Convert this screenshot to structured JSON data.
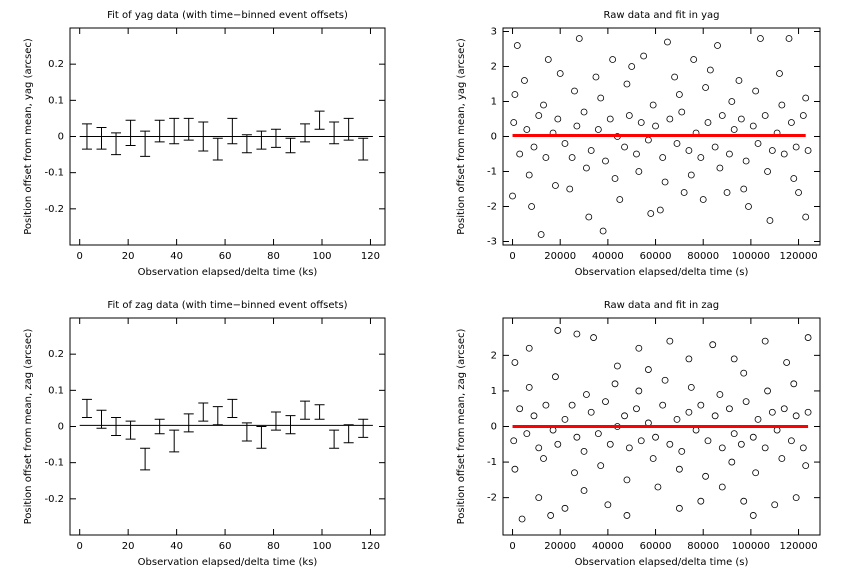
{
  "chart_data": [
    {
      "type": "errorbar",
      "title": "Fit of yag data (with time−binned event offsets)",
      "xlabel": "Observation elapsed/delta time (ks)",
      "ylabel": "Position offset from mean, yag (arcsec)",
      "x": [
        3,
        9,
        15,
        21,
        27,
        33,
        39,
        45,
        51,
        57,
        63,
        69,
        75,
        81,
        87,
        93,
        99,
        105,
        111,
        117
      ],
      "values": [
        0.0,
        -0.005,
        -0.02,
        0.01,
        -0.02,
        0.015,
        0.015,
        0.02,
        0.0,
        -0.035,
        0.015,
        -0.02,
        -0.01,
        -0.005,
        -0.025,
        0.01,
        0.045,
        0.01,
        0.02,
        -0.035
      ],
      "errors": [
        0.035,
        0.03,
        0.03,
        0.035,
        0.035,
        0.03,
        0.035,
        0.03,
        0.04,
        0.03,
        0.035,
        0.025,
        0.025,
        0.025,
        0.02,
        0.025,
        0.025,
        0.03,
        0.03,
        0.03
      ],
      "color": "#000000",
      "fit": {
        "x": [
          0,
          121
        ],
        "values": [
          0.0,
          0.0
        ],
        "color": "#000000"
      },
      "xlim": [
        -4,
        126
      ],
      "ylim": [
        -0.3,
        0.3
      ],
      "xticks": [
        0,
        20,
        40,
        60,
        80,
        100,
        120
      ],
      "yticks": [
        -0.2,
        -0.1,
        0,
        0.1,
        0.2
      ]
    },
    {
      "type": "scatter",
      "title": "Raw data and fit in yag",
      "xlabel": "Observation elapsed/delta time (s)",
      "ylabel": "Position offset from mean, yag (arcsec)",
      "x": [
        500,
        3000,
        6000,
        9000,
        11000,
        14000,
        17000,
        19000,
        22000,
        25000,
        27000,
        30000,
        33000,
        36000,
        39000,
        41000,
        44000,
        47000,
        49000,
        52000,
        54000,
        57000,
        60000,
        63000,
        66000,
        69000,
        71000,
        74000,
        77000,
        79000,
        82000,
        85000,
        88000,
        91000,
        93000,
        96000,
        98000,
        101000,
        103000,
        106000,
        109000,
        111000,
        114000,
        117000,
        119000,
        122000,
        124000,
        1000,
        7000,
        13000,
        18000,
        26000,
        31000,
        37000,
        43000,
        48000,
        53000,
        59000,
        64000,
        70000,
        75000,
        81000,
        87000,
        92000,
        97000,
        102000,
        107000,
        113000,
        118000,
        123000,
        0,
        2000,
        5000,
        8000,
        12000,
        15000,
        20000,
        24000,
        28000,
        32000,
        35000,
        38000,
        42000,
        45000,
        50000,
        55000,
        58000,
        62000,
        65000,
        68000,
        72000,
        76000,
        80000,
        83000,
        86000,
        90000,
        95000,
        99000,
        104000,
        108000,
        112000,
        116000,
        120000,
        123000
      ],
      "values": [
        0.4,
        -0.5,
        0.2,
        -0.3,
        0.6,
        -0.6,
        0.1,
        0.5,
        -0.2,
        -0.6,
        0.3,
        0.7,
        -0.4,
        0.2,
        -0.7,
        0.5,
        0.0,
        -0.3,
        0.6,
        -0.5,
        0.4,
        -0.1,
        0.3,
        -0.6,
        0.5,
        -0.2,
        0.7,
        -0.4,
        0.1,
        -0.6,
        0.4,
        -0.3,
        0.6,
        -0.5,
        0.2,
        0.5,
        -0.7,
        0.3,
        -0.2,
        0.6,
        -0.4,
        0.1,
        -0.5,
        0.4,
        -0.3,
        0.6,
        -0.4,
        1.2,
        -1.1,
        0.9,
        -1.4,
        1.3,
        -0.9,
        1.1,
        -1.2,
        1.5,
        -1.0,
        0.9,
        -1.3,
        1.2,
        -1.1,
        1.4,
        -0.9,
        1.0,
        -1.5,
        1.3,
        -1.0,
        0.9,
        -1.2,
        1.1,
        -1.7,
        2.6,
        1.6,
        -2.0,
        -2.8,
        2.2,
        1.8,
        -1.5,
        2.8,
        -2.3,
        1.7,
        -2.7,
        2.2,
        -1.8,
        2.0,
        2.3,
        -2.2,
        -2.1,
        2.7,
        1.7,
        -1.6,
        2.2,
        -1.8,
        1.9,
        2.6,
        -1.6,
        1.6,
        -2.0,
        2.8,
        -2.4,
        1.8,
        2.8,
        -1.6,
        -2.3
      ],
      "color": "#000000",
      "fit": {
        "x": [
          0,
          123000
        ],
        "values": [
          0.03,
          0.03
        ],
        "color": "#ff0000"
      },
      "xlim": [
        -4000,
        129000
      ],
      "ylim": [
        -3.1,
        3.1
      ],
      "xticks": [
        0,
        20000,
        40000,
        60000,
        80000,
        100000,
        120000
      ],
      "yticks": [
        -3,
        -2,
        -1,
        0,
        1,
        2,
        3
      ]
    },
    {
      "type": "errorbar",
      "title": "Fit of zag data (with time−binned event offsets)",
      "xlabel": "Observation elapsed/delta time (ks)",
      "ylabel": "Position offset from mean, zag (arcsec)",
      "x": [
        3,
        9,
        15,
        21,
        27,
        33,
        39,
        45,
        51,
        57,
        63,
        69,
        75,
        81,
        87,
        93,
        99,
        105,
        111,
        117
      ],
      "values": [
        0.05,
        0.02,
        0.0,
        -0.01,
        -0.09,
        0.0,
        -0.04,
        0.01,
        0.04,
        0.03,
        0.05,
        -0.015,
        -0.03,
        0.015,
        0.005,
        0.045,
        0.04,
        -0.035,
        -0.02,
        -0.005
      ],
      "errors": [
        0.025,
        0.025,
        0.025,
        0.025,
        0.03,
        0.02,
        0.03,
        0.025,
        0.025,
        0.025,
        0.025,
        0.025,
        0.03,
        0.025,
        0.025,
        0.025,
        0.02,
        0.025,
        0.025,
        0.025
      ],
      "color": "#000000",
      "fit": {
        "x": [
          0,
          121
        ],
        "values": [
          0.003,
          0.003
        ],
        "color": "#000000"
      },
      "xlim": [
        -4,
        126
      ],
      "ylim": [
        -0.3,
        0.3
      ],
      "xticks": [
        0,
        20,
        40,
        60,
        80,
        100,
        120
      ],
      "yticks": [
        -0.2,
        -0.1,
        0,
        0.1,
        0.2
      ]
    },
    {
      "type": "scatter",
      "title": "Raw data and fit in zag",
      "xlabel": "Observation elapsed/delta time (s)",
      "ylabel": "Position offset from mean, zag (arcsec)",
      "x": [
        500,
        3000,
        6000,
        9000,
        11000,
        14000,
        17000,
        19000,
        22000,
        25000,
        27000,
        30000,
        33000,
        36000,
        39000,
        41000,
        44000,
        47000,
        49000,
        52000,
        54000,
        57000,
        60000,
        63000,
        66000,
        69000,
        71000,
        74000,
        77000,
        79000,
        82000,
        85000,
        88000,
        91000,
        93000,
        96000,
        98000,
        101000,
        103000,
        106000,
        109000,
        111000,
        114000,
        117000,
        119000,
        122000,
        124000,
        1000,
        7000,
        13000,
        18000,
        26000,
        31000,
        37000,
        43000,
        48000,
        53000,
        59000,
        64000,
        70000,
        75000,
        81000,
        87000,
        92000,
        97000,
        102000,
        107000,
        113000,
        118000,
        123000,
        1000,
        4000,
        7000,
        11000,
        16000,
        19000,
        22000,
        27000,
        30000,
        34000,
        40000,
        44000,
        48000,
        53000,
        57000,
        61000,
        66000,
        70000,
        74000,
        79000,
        84000,
        88000,
        93000,
        97000,
        101000,
        106000,
        110000,
        115000,
        119000,
        124000
      ],
      "values": [
        -0.4,
        0.5,
        -0.2,
        0.3,
        -0.6,
        0.6,
        -0.1,
        -0.5,
        0.2,
        0.6,
        -0.3,
        -0.7,
        0.4,
        -0.2,
        0.7,
        -0.5,
        0.0,
        0.3,
        -0.6,
        0.5,
        -0.4,
        0.1,
        -0.3,
        0.6,
        -0.5,
        0.2,
        -0.7,
        0.4,
        -0.1,
        0.6,
        -0.4,
        0.3,
        -0.6,
        0.5,
        -0.2,
        -0.5,
        0.7,
        -0.3,
        0.2,
        -0.6,
        0.4,
        -0.1,
        0.5,
        -0.4,
        0.3,
        -0.6,
        0.4,
        -1.2,
        1.1,
        -0.9,
        1.4,
        -1.3,
        0.9,
        -1.1,
        1.2,
        -1.5,
        1.0,
        -0.9,
        1.3,
        -1.2,
        1.1,
        -1.4,
        0.9,
        -1.0,
        1.5,
        -1.3,
        1.0,
        -0.9,
        1.2,
        -1.1,
        1.8,
        -2.6,
        2.2,
        -2.0,
        -2.5,
        2.7,
        -2.3,
        2.6,
        -1.8,
        2.5,
        -2.2,
        1.7,
        -2.5,
        2.2,
        1.6,
        -1.7,
        2.4,
        -2.3,
        1.9,
        -2.1,
        2.3,
        -1.7,
        1.9,
        -2.1,
        -2.5,
        2.4,
        -2.2,
        1.8,
        -2.0,
        2.5
      ],
      "color": "#000000",
      "fit": {
        "x": [
          0,
          124000
        ],
        "values": [
          0.0,
          0.0
        ],
        "color": "#ff0000"
      },
      "xlim": [
        -4000,
        129000
      ],
      "ylim": [
        -3.05,
        3.05
      ],
      "xticks": [
        0,
        20000,
        40000,
        60000,
        80000,
        100000,
        120000
      ],
      "yticks": [
        -2,
        -1,
        0,
        1,
        2
      ]
    }
  ]
}
